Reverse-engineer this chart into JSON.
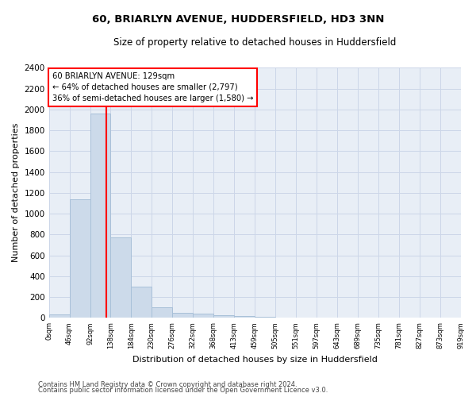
{
  "title": "60, BRIARLYN AVENUE, HUDDERSFIELD, HD3 3NN",
  "subtitle": "Size of property relative to detached houses in Huddersfield",
  "xlabel": "Distribution of detached houses by size in Huddersfield",
  "ylabel": "Number of detached properties",
  "bar_color": "#ccdaea",
  "bar_edge_color": "#a8c0d8",
  "bar_heights": [
    35,
    1140,
    1960,
    770,
    300,
    100,
    45,
    40,
    25,
    15,
    10,
    0,
    0,
    0,
    0,
    0,
    0,
    0,
    0,
    0
  ],
  "tick_labels": [
    "0sqm",
    "46sqm",
    "92sqm",
    "138sqm",
    "184sqm",
    "230sqm",
    "276sqm",
    "322sqm",
    "368sqm",
    "413sqm",
    "459sqm",
    "505sqm",
    "551sqm",
    "597sqm",
    "643sqm",
    "689sqm",
    "735sqm",
    "781sqm",
    "827sqm",
    "873sqm",
    "919sqm"
  ],
  "ylim": [
    0,
    2400
  ],
  "yticks": [
    0,
    200,
    400,
    600,
    800,
    1000,
    1200,
    1400,
    1600,
    1800,
    2000,
    2200,
    2400
  ],
  "property_line_x": 2.8,
  "annotation_title": "60 BRIARLYN AVENUE: 129sqm",
  "annotation_line1": "← 64% of detached houses are smaller (2,797)",
  "annotation_line2": "36% of semi-detached houses are larger (1,580) →",
  "footer_line1": "Contains HM Land Registry data © Crown copyright and database right 2024.",
  "footer_line2": "Contains public sector information licensed under the Open Government Licence v3.0.",
  "grid_color": "#ccd6e8",
  "bg_color": "#e8eef6",
  "n_bars": 20
}
